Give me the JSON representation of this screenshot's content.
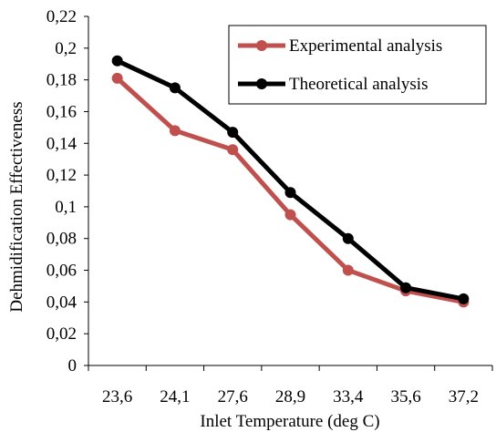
{
  "chart_data": {
    "type": "line",
    "categories": [
      "23,6",
      "24,1",
      "27,6",
      "28,9",
      "33,4",
      "35,6",
      "37,2"
    ],
    "series": [
      {
        "name": "Experimental analysis",
        "color": "#c0504d",
        "values": [
          0.181,
          0.148,
          0.136,
          0.095,
          0.06,
          0.047,
          0.04
        ]
      },
      {
        "name": "Theoretical analysis",
        "color": "#000000",
        "values": [
          0.192,
          0.175,
          0.147,
          0.109,
          0.08,
          0.049,
          0.042
        ]
      }
    ],
    "title": "",
    "xlabel": "Inlet Temperature (deg C)",
    "ylabel": "Dehmidification Effectiveness",
    "ylim": [
      0,
      0.22
    ],
    "yticks": [
      "0",
      "0,02",
      "0,04",
      "0,06",
      "0,08",
      "0,1",
      "0,12",
      "0,14",
      "0,16",
      "0,18",
      "0,2",
      "0,22"
    ],
    "grid": false,
    "legend_position": "top-right"
  }
}
